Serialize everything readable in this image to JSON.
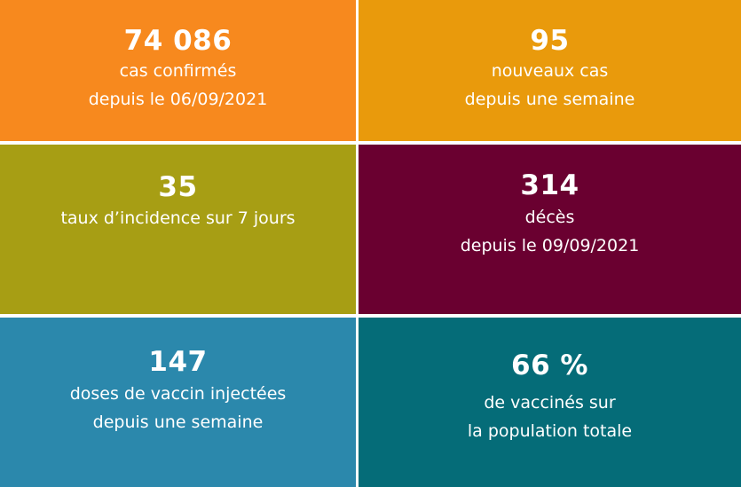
{
  "tiles": [
    {
      "value": "74 086",
      "lines": [
        "cas confirmés",
        "depuis le 06/09/2021"
      ],
      "color": "#f7891e"
    },
    {
      "value": "95",
      "lines": [
        "nouveaux cas",
        "depuis une semaine"
      ],
      "color": "#e99a0c"
    },
    {
      "value": "35",
      "lines": [
        "taux d’incidence sur 7 jours"
      ],
      "color": "#a79e14"
    },
    {
      "value": "314",
      "lines": [
        "décès",
        "depuis le 09/09/2021"
      ],
      "color": "#6a0030"
    },
    {
      "value": "147",
      "lines": [
        "doses de vaccin injectées",
        "depuis une semaine"
      ],
      "color": "#2b88ac"
    },
    {
      "value": "66 %",
      "lines": [
        "de vaccinés sur",
        "la population totale"
      ],
      "color": "#056c78"
    }
  ]
}
